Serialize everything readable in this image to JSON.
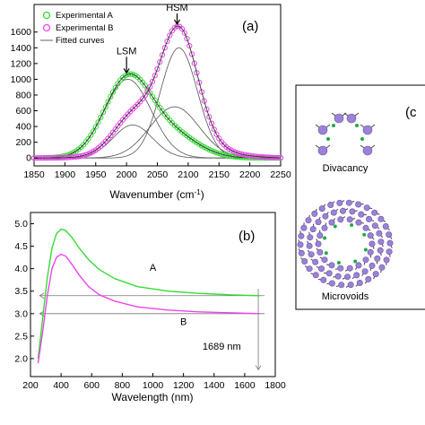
{
  "chart_data": [
    {
      "type": "scatter",
      "panel_label": "(a)",
      "xlabel": "Wavenumber (cm",
      "xlabel_sup": "-1",
      "xlabel_end": ")",
      "xlim": [
        1850,
        2250
      ],
      "ylim": [
        -100,
        1950
      ],
      "xticks": [
        1850,
        1900,
        1950,
        2000,
        2050,
        2100,
        2150,
        2200,
        2250
      ],
      "yticks": [
        0,
        200,
        400,
        600,
        800,
        1000,
        1200,
        1400,
        1600
      ],
      "legend": [
        {
          "label": "Experimental A",
          "marker": "circle",
          "color": "#33dd33"
        },
        {
          "label": "Experimental B",
          "marker": "circle",
          "color": "#ee44ee"
        },
        {
          "label": "Fitted curves",
          "marker": "line",
          "color": "#666666"
        }
      ],
      "series": [
        {
          "name": "Experimental A",
          "color": "#33dd33",
          "components": [
            {
              "center": 2002,
              "amplitude": 1000,
              "sigma": 38
            },
            {
              "center": 2075,
              "amplitude": 280,
              "sigma": 42
            }
          ]
        },
        {
          "name": "Experimental B",
          "color": "#ee44ee",
          "components": [
            {
              "center": 2010,
              "amplitude": 420,
              "sigma": 32
            },
            {
              "center": 2085,
              "amplitude": 1400,
              "sigma": 30
            },
            {
              "center": 2075,
              "amplitude": 250,
              "sigma": 60
            }
          ]
        }
      ],
      "fitted_curves": [
        {
          "center": 2002,
          "amplitude": 1000,
          "sigma": 38
        },
        {
          "center": 2010,
          "amplitude": 420,
          "sigma": 32
        },
        {
          "center": 2085,
          "amplitude": 1400,
          "sigma": 30
        },
        {
          "center": 2078,
          "amplitude": 650,
          "sigma": 40
        }
      ],
      "annotations": [
        {
          "text": "LSM",
          "x": 2000,
          "y": 1320,
          "arrow_to_y": 1080
        },
        {
          "text": "HSM",
          "x": 2082,
          "y": 1870,
          "arrow_to_y": 1700
        }
      ]
    },
    {
      "type": "line",
      "panel_label": "(b)",
      "xlabel": "Wavelength (nm)",
      "xlim": [
        200,
        1800
      ],
      "ylim": [
        1.6,
        5.25
      ],
      "xticks": [
        200,
        400,
        600,
        800,
        1000,
        1200,
        1400,
        1600,
        1800
      ],
      "yticks": [
        2.0,
        2.5,
        3.0,
        3.5,
        4.0,
        4.5,
        5.0
      ],
      "series": [
        {
          "name": "A",
          "color": "#33dd33",
          "x": [
            250,
            280,
            310,
            340,
            370,
            400,
            430,
            470,
            520,
            580,
            650,
            750,
            900,
            1100,
            1300,
            1500,
            1700
          ],
          "y": [
            2.0,
            2.9,
            3.8,
            4.45,
            4.78,
            4.88,
            4.85,
            4.7,
            4.45,
            4.2,
            3.98,
            3.78,
            3.6,
            3.5,
            3.45,
            3.42,
            3.4
          ]
        },
        {
          "name": "B",
          "color": "#ee44ee",
          "x": [
            250,
            280,
            310,
            340,
            370,
            400,
            430,
            470,
            520,
            580,
            650,
            750,
            900,
            1100,
            1300,
            1500,
            1700
          ],
          "y": [
            1.9,
            2.6,
            3.4,
            4.0,
            4.25,
            4.32,
            4.28,
            4.1,
            3.85,
            3.6,
            3.42,
            3.28,
            3.15,
            3.08,
            3.04,
            3.02,
            3.0
          ]
        }
      ],
      "reference_lines": [
        3.4,
        3.0
      ],
      "annotations": [
        {
          "text": "A",
          "x": 1000,
          "y": 3.95
        },
        {
          "text": "B",
          "x": 1200,
          "y": 2.75
        },
        {
          "text": "1689 nm",
          "x": 1450,
          "y": 2.2
        }
      ],
      "cutoff_x": 1689
    }
  ],
  "panel_c": {
    "label": "(c",
    "items": [
      "Divacancy",
      "Microvoids"
    ]
  }
}
